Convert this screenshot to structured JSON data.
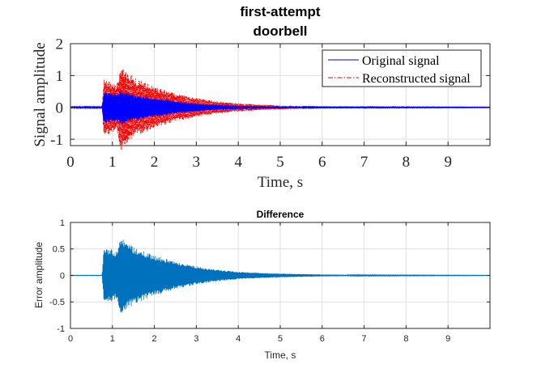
{
  "chart_data": [
    {
      "type": "line",
      "title": [
        "first-attempt",
        "doorbell"
      ],
      "xlabel": "Time, s",
      "ylabel": "Signal amplitude",
      "xlim": [
        0,
        10
      ],
      "ylim": [
        -1.2,
        2
      ],
      "xticks": [
        0,
        1,
        2,
        3,
        4,
        5,
        6,
        7,
        8,
        9
      ],
      "yticks": [
        -1,
        0,
        1,
        2
      ],
      "grid": true,
      "legend": "top-right",
      "envelope_note_not_rendered": false,
      "series": [
        {
          "name": "Original signal",
          "color": "#0000ff",
          "style": "solid",
          "onset": 0.75,
          "envelope": [
            [
              0,
              0.02
            ],
            [
              0.75,
              0.02
            ],
            [
              0.8,
              0.5
            ],
            [
              1.1,
              0.45
            ],
            [
              1.2,
              0.55
            ],
            [
              1.5,
              0.4
            ],
            [
              2.0,
              0.3
            ],
            [
              2.5,
              0.2
            ],
            [
              3.0,
              0.12
            ],
            [
              3.5,
              0.08
            ],
            [
              4.0,
              0.05
            ],
            [
              5.0,
              0.03
            ],
            [
              6.0,
              0.015
            ],
            [
              10.0,
              0.01
            ]
          ]
        },
        {
          "name": "Reconstructed signal",
          "color": "#ff0000",
          "style": "dash-dot",
          "onset": 0.75,
          "envelope": [
            [
              0,
              0.02
            ],
            [
              0.75,
              0.02
            ],
            [
              0.8,
              0.95
            ],
            [
              1.1,
              0.7
            ],
            [
              1.2,
              1.35
            ],
            [
              1.5,
              0.95
            ],
            [
              2.0,
              0.65
            ],
            [
              2.5,
              0.45
            ],
            [
              3.0,
              0.3
            ],
            [
              3.5,
              0.2
            ],
            [
              4.0,
              0.13
            ],
            [
              4.5,
              0.09
            ],
            [
              5.0,
              0.06
            ],
            [
              6.0,
              0.03
            ],
            [
              7.0,
              0.02
            ],
            [
              10.0,
              0.01
            ]
          ]
        }
      ]
    },
    {
      "type": "line",
      "title": "Difference",
      "xlabel": "Time, s",
      "ylabel": "Error amplitude",
      "xlim": [
        0,
        10
      ],
      "ylim": [
        -1,
        1
      ],
      "xticks": [
        0,
        1,
        2,
        3,
        4,
        5,
        6,
        7,
        8,
        9
      ],
      "yticks": [
        -1,
        -0.5,
        0,
        0.5,
        1
      ],
      "grid": true,
      "series": [
        {
          "name": "",
          "color": "#0072bd",
          "style": "solid",
          "onset": 0.75,
          "envelope": [
            [
              0,
              0.005
            ],
            [
              0.75,
              0.005
            ],
            [
              0.8,
              0.55
            ],
            [
              1.1,
              0.45
            ],
            [
              1.2,
              0.73
            ],
            [
              1.5,
              0.55
            ],
            [
              2.0,
              0.38
            ],
            [
              2.5,
              0.26
            ],
            [
              3.0,
              0.17
            ],
            [
              3.5,
              0.11
            ],
            [
              4.0,
              0.07
            ],
            [
              4.5,
              0.05
            ],
            [
              5.0,
              0.035
            ],
            [
              6.0,
              0.018
            ],
            [
              7.0,
              0.01
            ],
            [
              10.0,
              0.005
            ]
          ]
        }
      ]
    }
  ]
}
